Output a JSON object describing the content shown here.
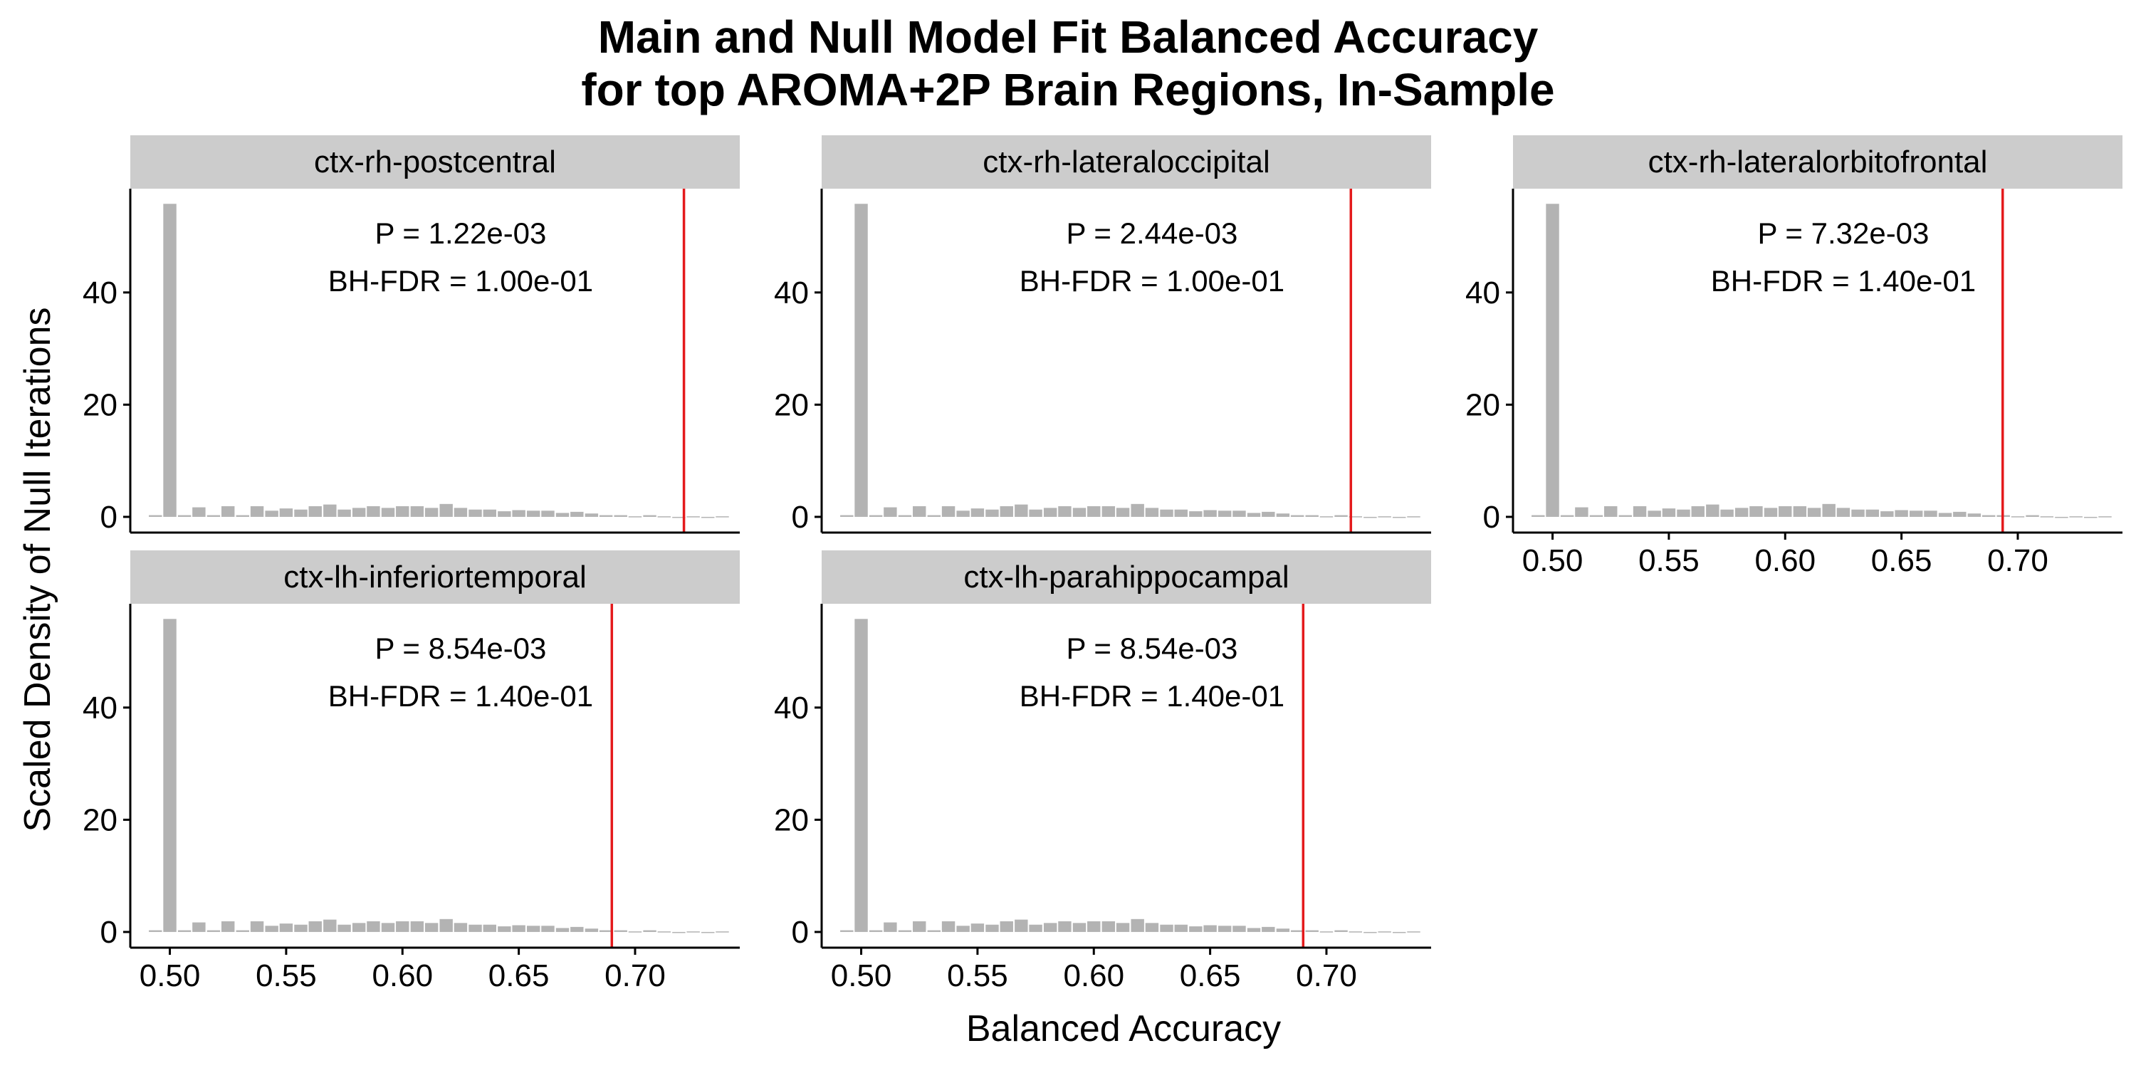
{
  "chart_data": {
    "type": "bar",
    "title_lines": [
      "Main and Null Model Fit Balanced Accuracy",
      "for top AROMA+2P Brain Regions, In-Sample"
    ],
    "xlabel": "Balanced Accuracy",
    "ylabel": "Scaled Density of Null Iterations",
    "xlim": [
      0.483,
      0.745
    ],
    "ylim": [
      -2.8,
      58.5
    ],
    "x_ticks": [
      0.5,
      0.55,
      0.6,
      0.65,
      0.7
    ],
    "x_tick_labels": [
      "0.50",
      "0.55",
      "0.60",
      "0.65",
      "0.70"
    ],
    "y_ticks": [
      0,
      20,
      40
    ],
    "y_tick_labels": [
      "0",
      "20",
      "40"
    ],
    "bar_color": "#b3b3b3",
    "line_color": "#e41a1c",
    "strip_color": "#cccccc",
    "null_distribution": {
      "bin_width": 0.00625,
      "bin_centers": [
        0.4938,
        0.5,
        0.5063,
        0.5125,
        0.5188,
        0.525,
        0.5313,
        0.5375,
        0.5438,
        0.55,
        0.5563,
        0.5625,
        0.5688,
        0.575,
        0.5813,
        0.5875,
        0.5938,
        0.6,
        0.6063,
        0.6125,
        0.6188,
        0.625,
        0.6313,
        0.6375,
        0.6438,
        0.65,
        0.6563,
        0.6625,
        0.6688,
        0.675,
        0.6813,
        0.6875,
        0.6938,
        0.7,
        0.7063,
        0.7125,
        0.7188,
        0.725,
        0.7313,
        0.7375
      ],
      "density": [
        0.3,
        55.8,
        0.3,
        1.7,
        0.3,
        1.9,
        0.3,
        1.9,
        1.1,
        1.5,
        1.3,
        1.9,
        2.2,
        1.3,
        1.6,
        1.9,
        1.6,
        1.9,
        1.9,
        1.6,
        2.3,
        1.6,
        1.3,
        1.3,
        1.0,
        1.2,
        1.1,
        1.1,
        0.7,
        0.9,
        0.6,
        0.3,
        0.3,
        0.1,
        0.3,
        0.1,
        0.0,
        0.1,
        0.0,
        0.1
      ]
    },
    "panels": [
      {
        "name": "ctx-rh-postcentral",
        "observed": 0.721,
        "p_label": "P = 1.22e-03",
        "fdr_label": "BH-FDR = 1.00e-01",
        "show_x_axis": false
      },
      {
        "name": "ctx-rh-lateraloccipital",
        "observed": 0.7105,
        "p_label": "P = 2.44e-03",
        "fdr_label": "BH-FDR = 1.00e-01",
        "show_x_axis": false
      },
      {
        "name": "ctx-rh-lateralorbitofrontal",
        "observed": 0.6935,
        "p_label": "P = 7.32e-03",
        "fdr_label": "BH-FDR = 1.40e-01",
        "show_x_axis": true
      },
      {
        "name": "ctx-lh-inferiortemporal",
        "observed": 0.69,
        "p_label": "P = 8.54e-03",
        "fdr_label": "BH-FDR = 1.40e-01",
        "show_x_axis": true
      },
      {
        "name": "ctx-lh-parahippocampal",
        "observed": 0.69,
        "p_label": "P = 8.54e-03",
        "fdr_label": "BH-FDR = 1.40e-01",
        "show_x_axis": true
      }
    ]
  }
}
